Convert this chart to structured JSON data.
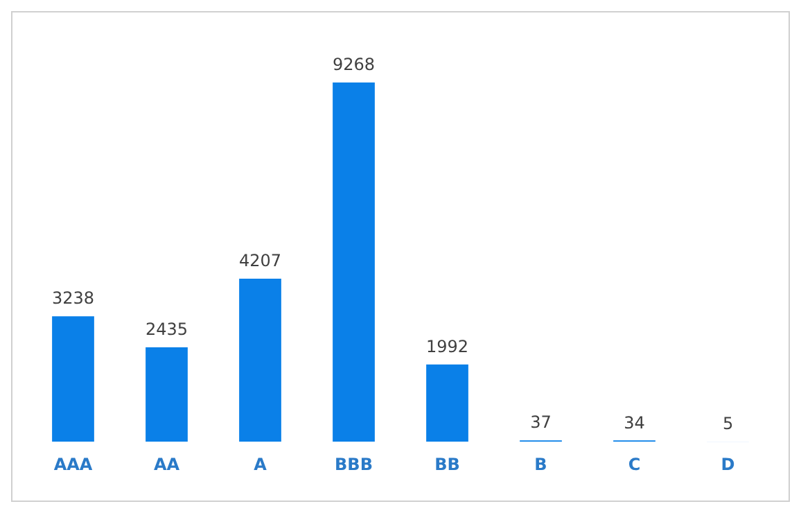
{
  "chart_data": {
    "type": "bar",
    "categories": [
      "AAA",
      "AA",
      "A",
      "BBB",
      "BB",
      "B",
      "C",
      "D"
    ],
    "values": [
      3238,
      2435,
      4207,
      9268,
      1992,
      37,
      34,
      5
    ],
    "color": "#0a80e8",
    "data_labels": true,
    "grid": false,
    "legend": false,
    "tick_labels": "x"
  }
}
